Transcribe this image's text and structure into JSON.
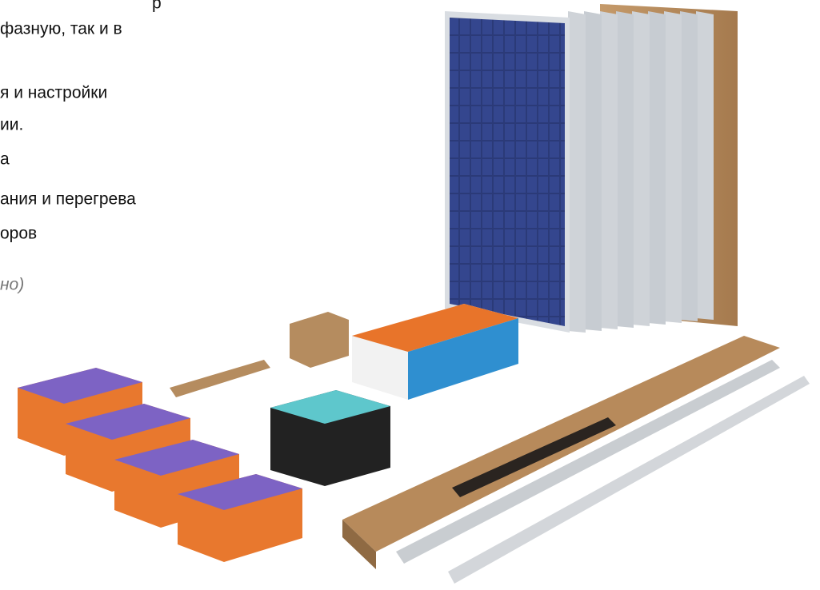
{
  "text_lines": [
    "р",
    "фазную, так и в",
    "я и настройки",
    "ии.",
    "а",
    "ания и перегрева",
    "оров"
  ],
  "italic_note": "но)"
}
